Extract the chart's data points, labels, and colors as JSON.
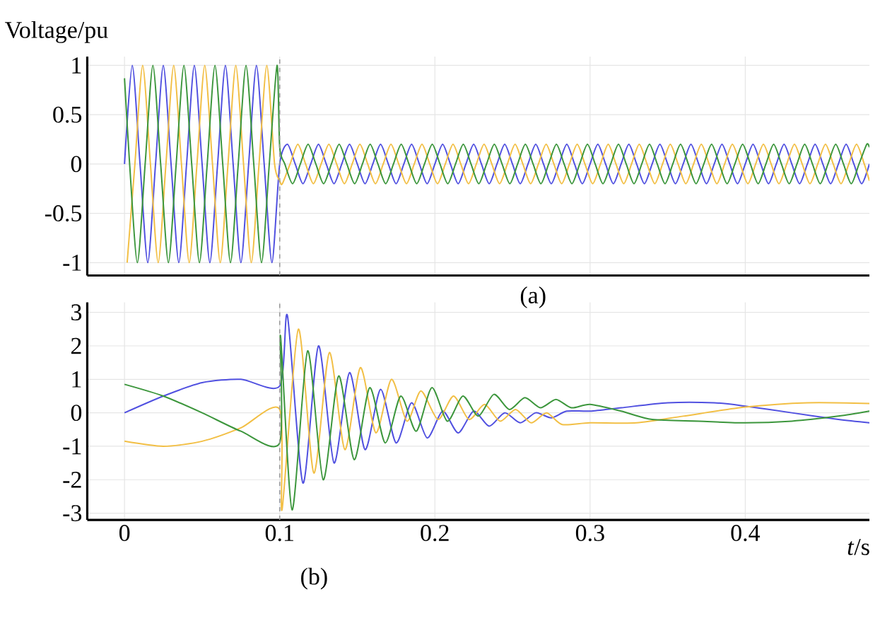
{
  "chart_data": [
    {
      "type": "line",
      "ylabel": "Voltage/pu",
      "annotations": [
        "(a)"
      ],
      "xlim": [
        -0.024,
        0.48
      ],
      "ylim": [
        -1.13,
        1.09
      ],
      "xticks": [
        0,
        0.1,
        0.2,
        0.3,
        0.4
      ],
      "yticks": [
        -1,
        -0.5,
        0,
        0.5,
        1
      ],
      "tick_labels": "y",
      "grid": true,
      "marker": "none",
      "line_style": "solid",
      "ref_lines": [
        {
          "axis": "x",
          "value": 0.1,
          "color": "#9a9a9a",
          "line_style": "dashed"
        }
      ],
      "series": [
        {
          "color": "#5050e0",
          "x": [
            0,
            0.005,
            0.01,
            0.015,
            0.02,
            0.025,
            0.03,
            0.035,
            0.04,
            0.045,
            0.05,
            0.055,
            0.06,
            0.065,
            0.07,
            0.075,
            0.08,
            0.085,
            0.09,
            0.095,
            0.1,
            0.105,
            0.11,
            0.115,
            0.12,
            0.125,
            0.13,
            0.135,
            0.14,
            0.145,
            0.15,
            0.155,
            0.16,
            0.165,
            0.17,
            0.175,
            0.18,
            0.185,
            0.19,
            0.195,
            0.2,
            0.205,
            0.21,
            0.215,
            0.22,
            0.225,
            0.23,
            0.235,
            0.24,
            0.245,
            0.25,
            0.255,
            0.26,
            0.265,
            0.27,
            0.275,
            0.28,
            0.285,
            0.29,
            0.295,
            0.3,
            0.305,
            0.31,
            0.315,
            0.32,
            0.325,
            0.33,
            0.335,
            0.34,
            0.345,
            0.35,
            0.355,
            0.36,
            0.365,
            0.37,
            0.375,
            0.38,
            0.385,
            0.39,
            0.395,
            0.4,
            0.405,
            0.41,
            0.415,
            0.42,
            0.425,
            0.43,
            0.435,
            0.44,
            0.445,
            0.45,
            0.455,
            0.46,
            0.465,
            0.47,
            0.475,
            0.48
          ],
          "values": [
            0,
            1,
            0,
            -1,
            0,
            1,
            0,
            -1,
            0,
            1,
            0,
            -1,
            0,
            1,
            0,
            -1,
            0,
            1,
            0,
            -1,
            0,
            0.2,
            0,
            -0.2,
            0,
            0.2,
            0,
            -0.2,
            0,
            0.2,
            0,
            -0.2,
            0,
            0.2,
            0,
            -0.2,
            0,
            0.2,
            0,
            -0.2,
            0,
            0.2,
            0,
            -0.2,
            0,
            0.2,
            0,
            -0.2,
            0,
            0.2,
            0,
            -0.2,
            0,
            0.2,
            0,
            -0.2,
            0,
            0.2,
            0,
            -0.2,
            0,
            0.2,
            0,
            -0.2,
            0,
            0.2,
            0,
            -0.2,
            0,
            0.2,
            0,
            -0.2,
            0,
            0.2,
            0,
            -0.2,
            0,
            0.2,
            0,
            -0.2,
            0,
            0.2,
            0,
            -0.2,
            0,
            0.2,
            0,
            -0.2,
            0,
            0.2,
            0,
            -0.2,
            0,
            0.2,
            0,
            -0.2,
            0
          ]
        },
        {
          "color": "#f2bf45",
          "x": [
            0.0017,
            0.0067,
            0.0117,
            0.0167,
            0.0217,
            0.0267,
            0.0317,
            0.0367,
            0.0417,
            0.0467,
            0.0517,
            0.0567,
            0.0617,
            0.0667,
            0.0717,
            0.0767,
            0.0817,
            0.0867,
            0.0917,
            0.0967,
            0.1,
            0.1017,
            0.1067,
            0.1117,
            0.1167,
            0.1217,
            0.1267,
            0.1317,
            0.1367,
            0.1417,
            0.1467,
            0.1517,
            0.1567,
            0.1617,
            0.1667,
            0.1717,
            0.1767,
            0.1817,
            0.1867,
            0.1917,
            0.1967,
            0.2017,
            0.2067,
            0.2117,
            0.2167,
            0.2217,
            0.2267,
            0.2317,
            0.2367,
            0.2417,
            0.2467,
            0.2517,
            0.2567,
            0.2617,
            0.2667,
            0.2717,
            0.2767,
            0.2817,
            0.2867,
            0.2917,
            0.2967,
            0.3017,
            0.3067,
            0.3117,
            0.3167,
            0.3217,
            0.3267,
            0.3317,
            0.3367,
            0.3417,
            0.3467,
            0.3517,
            0.3567,
            0.3617,
            0.3667,
            0.3717,
            0.3767,
            0.3817,
            0.3867,
            0.3917,
            0.3967,
            0.4017,
            0.4067,
            0.4117,
            0.4167,
            0.4217,
            0.4267,
            0.4317,
            0.4367,
            0.4417,
            0.4467,
            0.4517,
            0.4567,
            0.4617,
            0.4667,
            0.4717,
            0.4767,
            0.48
          ],
          "values": [
            -1,
            0,
            1,
            0,
            -1,
            0,
            1,
            0,
            -1,
            0,
            1,
            0,
            -1,
            0,
            1,
            0,
            -1,
            0,
            1,
            0,
            -0.17,
            -0.2,
            0,
            0.2,
            0,
            -0.2,
            0,
            0.2,
            0,
            -0.2,
            0,
            0.2,
            0,
            -0.2,
            0,
            0.2,
            0,
            -0.2,
            0,
            0.2,
            0,
            -0.2,
            0,
            0.2,
            0,
            -0.2,
            0,
            0.2,
            0,
            -0.2,
            0,
            0.2,
            0,
            -0.2,
            0,
            0.2,
            0,
            -0.2,
            0,
            0.2,
            0,
            -0.2,
            0,
            0.2,
            0,
            -0.2,
            0,
            0.2,
            0,
            -0.2,
            0,
            0.2,
            0,
            -0.2,
            0,
            0.2,
            0,
            -0.2,
            0,
            0.2,
            0,
            -0.2,
            0,
            0.2,
            0,
            -0.2,
            0,
            0.2,
            0,
            -0.2,
            0,
            0.2,
            0,
            -0.2,
            0,
            0.2,
            0,
            -0.17
          ]
        },
        {
          "color": "#3c963c",
          "x": [
            0,
            0.0033,
            0.0083,
            0.0133,
            0.0183,
            0.0233,
            0.0283,
            0.0333,
            0.0383,
            0.0433,
            0.0483,
            0.0533,
            0.0583,
            0.0633,
            0.0683,
            0.0733,
            0.0783,
            0.0833,
            0.0883,
            0.0933,
            0.0983,
            0.1,
            0.1033,
            0.1083,
            0.1133,
            0.1183,
            0.1233,
            0.1283,
            0.1333,
            0.1383,
            0.1433,
            0.1483,
            0.1533,
            0.1583,
            0.1633,
            0.1683,
            0.1733,
            0.1783,
            0.1833,
            0.1883,
            0.1933,
            0.1983,
            0.2033,
            0.2083,
            0.2133,
            0.2183,
            0.2233,
            0.2283,
            0.2333,
            0.2383,
            0.2433,
            0.2483,
            0.2533,
            0.2583,
            0.2633,
            0.2683,
            0.2733,
            0.2783,
            0.2833,
            0.2883,
            0.2933,
            0.2983,
            0.3033,
            0.3083,
            0.3133,
            0.3183,
            0.3233,
            0.3283,
            0.3333,
            0.3383,
            0.3433,
            0.3483,
            0.3533,
            0.3583,
            0.3633,
            0.3683,
            0.3733,
            0.3783,
            0.3833,
            0.3883,
            0.3933,
            0.3983,
            0.4033,
            0.4083,
            0.4133,
            0.4183,
            0.4233,
            0.4283,
            0.4333,
            0.4383,
            0.4433,
            0.4483,
            0.4533,
            0.4583,
            0.4633,
            0.4683,
            0.4733,
            0.4783,
            0.48
          ],
          "values": [
            0.87,
            0,
            -1,
            0,
            1,
            0,
            -1,
            0,
            1,
            0,
            -1,
            0,
            1,
            0,
            -1,
            0,
            1,
            0,
            -1,
            0,
            1,
            0.17,
            0,
            -0.2,
            0,
            0.2,
            0,
            -0.2,
            0,
            0.2,
            0,
            -0.2,
            0,
            0.2,
            0,
            -0.2,
            0,
            0.2,
            0,
            -0.2,
            0,
            0.2,
            0,
            -0.2,
            0,
            0.2,
            0,
            -0.2,
            0,
            0.2,
            0,
            -0.2,
            0,
            0.2,
            0,
            -0.2,
            0,
            0.2,
            0,
            -0.2,
            0,
            0.2,
            0,
            -0.2,
            0,
            0.2,
            0,
            -0.2,
            0,
            0.2,
            0,
            -0.2,
            0,
            0.2,
            0,
            -0.2,
            0,
            0.2,
            0,
            -0.2,
            0,
            0.2,
            0,
            -0.2,
            0,
            0.2,
            0,
            -0.2,
            0,
            0.2,
            0,
            -0.2,
            0,
            0.2,
            0,
            -0.2,
            0,
            0.2,
            0.17
          ]
        }
      ]
    },
    {
      "type": "line",
      "xlabel": "*t*/s",
      "annotations": [
        "(b)"
      ],
      "xlim": [
        -0.024,
        0.48
      ],
      "ylim": [
        -3.2,
        3.3
      ],
      "xticks": [
        0,
        0.1,
        0.2,
        0.3,
        0.4
      ],
      "yticks": [
        -3,
        -2,
        -1,
        0,
        1,
        2,
        3
      ],
      "grid": true,
      "marker": "none",
      "line_style": "solid",
      "ref_lines": [
        {
          "axis": "x",
          "value": 0.1,
          "color": "#9a9a9a",
          "line_style": "dashed"
        }
      ],
      "series": [
        {
          "color": "#5050e0",
          "x": [
            0,
            0.025,
            0.05,
            0.075,
            0.1,
            0.105,
            0.115,
            0.125,
            0.135,
            0.145,
            0.155,
            0.165,
            0.175,
            0.185,
            0.195,
            0.205,
            0.215,
            0.225,
            0.235,
            0.245,
            0.255,
            0.265,
            0.275,
            0.285,
            0.3,
            0.32,
            0.35,
            0.38,
            0.4,
            0.43,
            0.46,
            0.48
          ],
          "values": [
            0,
            0.5,
            0.9,
            1.0,
            0.8,
            2.9,
            -2.1,
            2.0,
            -1.5,
            1.2,
            -1.1,
            0.7,
            -0.9,
            0.3,
            -0.75,
            0.05,
            -0.6,
            0.05,
            -0.4,
            0,
            -0.3,
            0,
            -0.15,
            0.05,
            0.05,
            0.15,
            0.3,
            0.3,
            0.2,
            0,
            -0.2,
            -0.3
          ]
        },
        {
          "color": "#f2bf45",
          "x": [
            0,
            0.025,
            0.05,
            0.075,
            0.1,
            0.1015,
            0.112,
            0.122,
            0.132,
            0.142,
            0.152,
            0.162,
            0.172,
            0.182,
            0.191,
            0.202,
            0.212,
            0.222,
            0.232,
            0.242,
            0.252,
            0.262,
            0.272,
            0.282,
            0.3,
            0.33,
            0.36,
            0.4,
            0.44,
            0.48
          ],
          "values": [
            -0.85,
            -1.0,
            -0.85,
            -0.45,
            0.1,
            -2.9,
            2.5,
            -1.8,
            1.8,
            -1.1,
            1.35,
            -0.6,
            1.0,
            -0.25,
            0.65,
            -0.2,
            0.5,
            -0.2,
            0.25,
            -0.25,
            0.1,
            -0.3,
            0,
            -0.35,
            -0.3,
            -0.3,
            -0.1,
            0.17,
            0.3,
            0.28
          ]
        },
        {
          "color": "#3c963c",
          "x": [
            0,
            0.025,
            0.05,
            0.075,
            0.1,
            0.1005,
            0.108,
            0.118,
            0.128,
            0.138,
            0.148,
            0.158,
            0.168,
            0.178,
            0.188,
            0.198,
            0.208,
            0.218,
            0.228,
            0.238,
            0.248,
            0.258,
            0.268,
            0.278,
            0.288,
            0.3,
            0.32,
            0.34,
            0.37,
            0.4,
            0.43,
            0.46,
            0.48
          ],
          "values": [
            0.85,
            0.5,
            0,
            -0.55,
            -0.9,
            2.3,
            -2.9,
            1.85,
            -2.0,
            1.1,
            -1.4,
            0.75,
            -0.9,
            0.5,
            -0.55,
            0.75,
            -0.25,
            0.5,
            -0.1,
            0.55,
            0.1,
            0.45,
            0.15,
            0.4,
            0.15,
            0.25,
            0.05,
            -0.2,
            -0.25,
            -0.3,
            -0.25,
            -0.1,
            0.05
          ]
        }
      ]
    }
  ]
}
